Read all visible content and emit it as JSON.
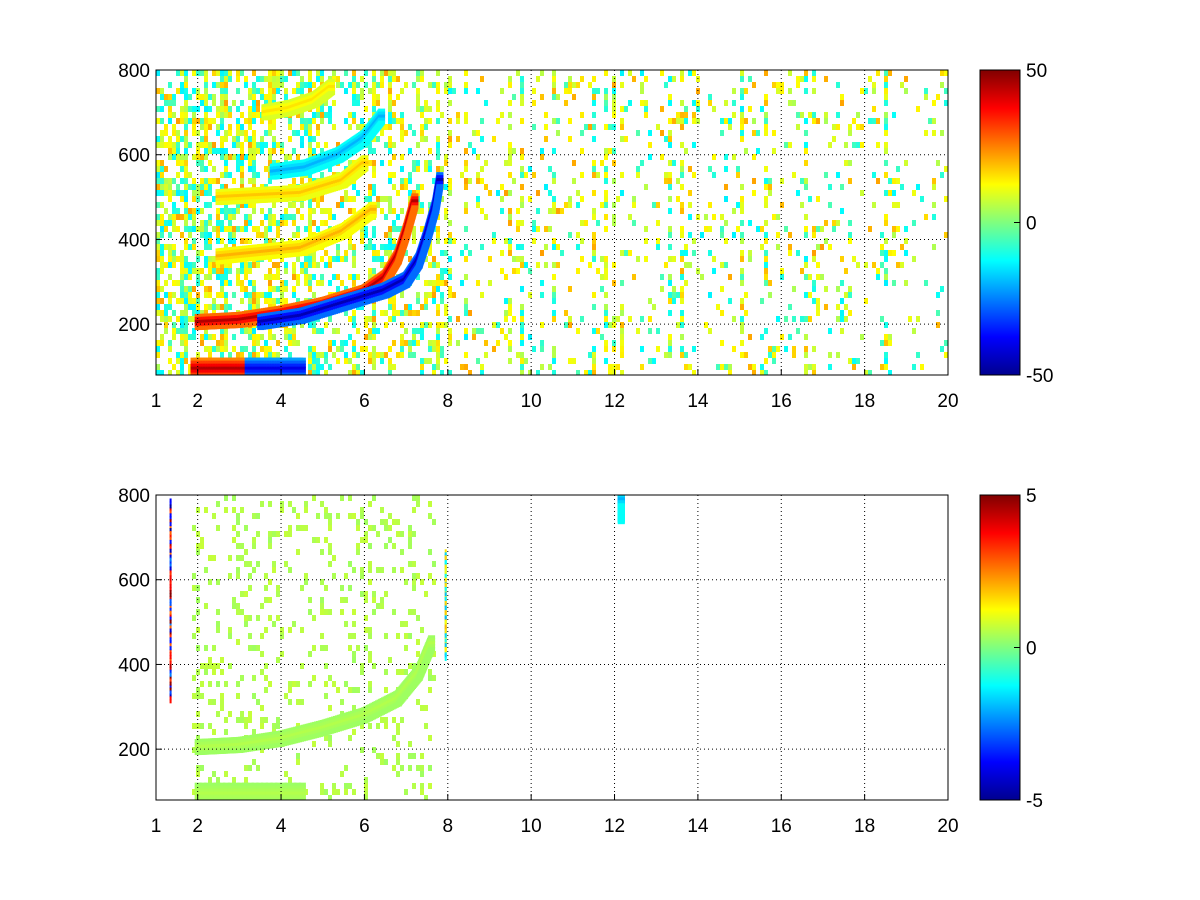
{
  "figure": {
    "background": "#ffffff"
  },
  "chart_data": [
    {
      "type": "heatmap",
      "panel": "top",
      "xlim": [
        1,
        20
      ],
      "ylim": [
        80,
        800
      ],
      "xticks": [
        1,
        2,
        4,
        6,
        8,
        10,
        12,
        14,
        16,
        18,
        20
      ],
      "xtick_labels": [
        "1",
        "2",
        "4",
        "6",
        "8",
        "10",
        "12",
        "14",
        "16",
        "18",
        "20"
      ],
      "yticks": [
        200,
        400,
        600,
        800
      ],
      "ytick_labels": [
        "200",
        "400",
        "600",
        "800"
      ],
      "grid": true,
      "colormap": "jet",
      "clim": [
        -50,
        50
      ],
      "colorbar_ticks": [
        50,
        0,
        -50
      ],
      "colorbar_labels": [
        "50",
        "0",
        "-50"
      ],
      "features": [
        {
          "kind": "arc",
          "sign": "positive",
          "value": 45,
          "points": [
            [
              2.0,
              205
            ],
            [
              3.0,
              210
            ],
            [
              4.0,
              225
            ],
            [
              5.0,
              245
            ],
            [
              6.0,
              275
            ],
            [
              6.5,
              310
            ],
            [
              6.8,
              360
            ],
            [
              7.0,
              420
            ],
            [
              7.2,
              490
            ]
          ]
        },
        {
          "kind": "arc",
          "sign": "negative",
          "value": -45,
          "points": [
            [
              3.5,
              205
            ],
            [
              4.5,
              220
            ],
            [
              5.5,
              250
            ],
            [
              6.5,
              280
            ],
            [
              7.0,
              305
            ],
            [
              7.3,
              350
            ],
            [
              7.5,
              410
            ],
            [
              7.7,
              480
            ],
            [
              7.8,
              540
            ]
          ]
        },
        {
          "kind": "band",
          "sign": "positive",
          "value": 45,
          "points": [
            [
              1.9,
              95
            ],
            [
              3.2,
              95
            ]
          ]
        },
        {
          "kind": "band",
          "sign": "negative",
          "value": -40,
          "points": [
            [
              3.2,
              95
            ],
            [
              4.5,
              95
            ]
          ]
        },
        {
          "kind": "arc",
          "sign": "positive",
          "value": 20,
          "points": [
            [
              2.5,
              360
            ],
            [
              3.5,
              370
            ],
            [
              4.5,
              380
            ],
            [
              5.5,
              420
            ],
            [
              6.2,
              470
            ]
          ]
        },
        {
          "kind": "arc",
          "sign": "positive",
          "value": 18,
          "points": [
            [
              2.5,
              500
            ],
            [
              3.5,
              505
            ],
            [
              4.5,
              510
            ],
            [
              5.5,
              540
            ],
            [
              6.0,
              580
            ]
          ]
        },
        {
          "kind": "arc",
          "sign": "negative",
          "value": -20,
          "points": [
            [
              3.8,
              560
            ],
            [
              4.6,
              570
            ],
            [
              5.4,
              600
            ],
            [
              6.0,
              640
            ],
            [
              6.4,
              690
            ]
          ]
        },
        {
          "kind": "arc",
          "sign": "positive",
          "value": 15,
          "points": [
            [
              3.6,
              700
            ],
            [
              4.2,
              710
            ],
            [
              4.8,
              730
            ],
            [
              5.2,
              760
            ]
          ]
        }
      ]
    },
    {
      "type": "heatmap",
      "panel": "bottom",
      "xlim": [
        1,
        20
      ],
      "ylim": [
        80,
        800
      ],
      "xticks": [
        1,
        2,
        4,
        6,
        8,
        10,
        12,
        14,
        16,
        18,
        20
      ],
      "xtick_labels": [
        "1",
        "2",
        "4",
        "6",
        "8",
        "10",
        "12",
        "14",
        "16",
        "18",
        "20"
      ],
      "yticks": [
        200,
        400,
        600,
        800
      ],
      "ytick_labels": [
        "200",
        "400",
        "600",
        "800"
      ],
      "grid": true,
      "colormap": "jet",
      "clim": [
        -5,
        5
      ],
      "colorbar_ticks": [
        5,
        0,
        -5
      ],
      "colorbar_labels": [
        "5",
        "0",
        "-5"
      ],
      "features": [
        {
          "kind": "arc",
          "sign": "near-zero",
          "value": 0.5,
          "points": [
            [
              2.0,
              205
            ],
            [
              3.0,
              210
            ],
            [
              4.0,
              225
            ],
            [
              5.0,
              250
            ],
            [
              6.0,
              280
            ],
            [
              6.8,
              320
            ],
            [
              7.3,
              380
            ],
            [
              7.6,
              450
            ]
          ]
        },
        {
          "kind": "band",
          "sign": "near-zero",
          "value": 0.5,
          "points": [
            [
              2.0,
              95
            ],
            [
              4.5,
              95
            ]
          ]
        },
        {
          "kind": "line",
          "sign": "mixed",
          "value": 5,
          "points": [
            [
              1.35,
              320
            ],
            [
              1.35,
              780
            ]
          ]
        },
        {
          "kind": "line",
          "sign": "mixed",
          "value": 2,
          "points": [
            [
              7.95,
              420
            ],
            [
              7.95,
              660
            ]
          ]
        },
        {
          "kind": "spot",
          "sign": "negative",
          "value": -2,
          "points": [
            [
              12.15,
              750
            ],
            [
              12.15,
              790
            ]
          ]
        }
      ]
    }
  ]
}
